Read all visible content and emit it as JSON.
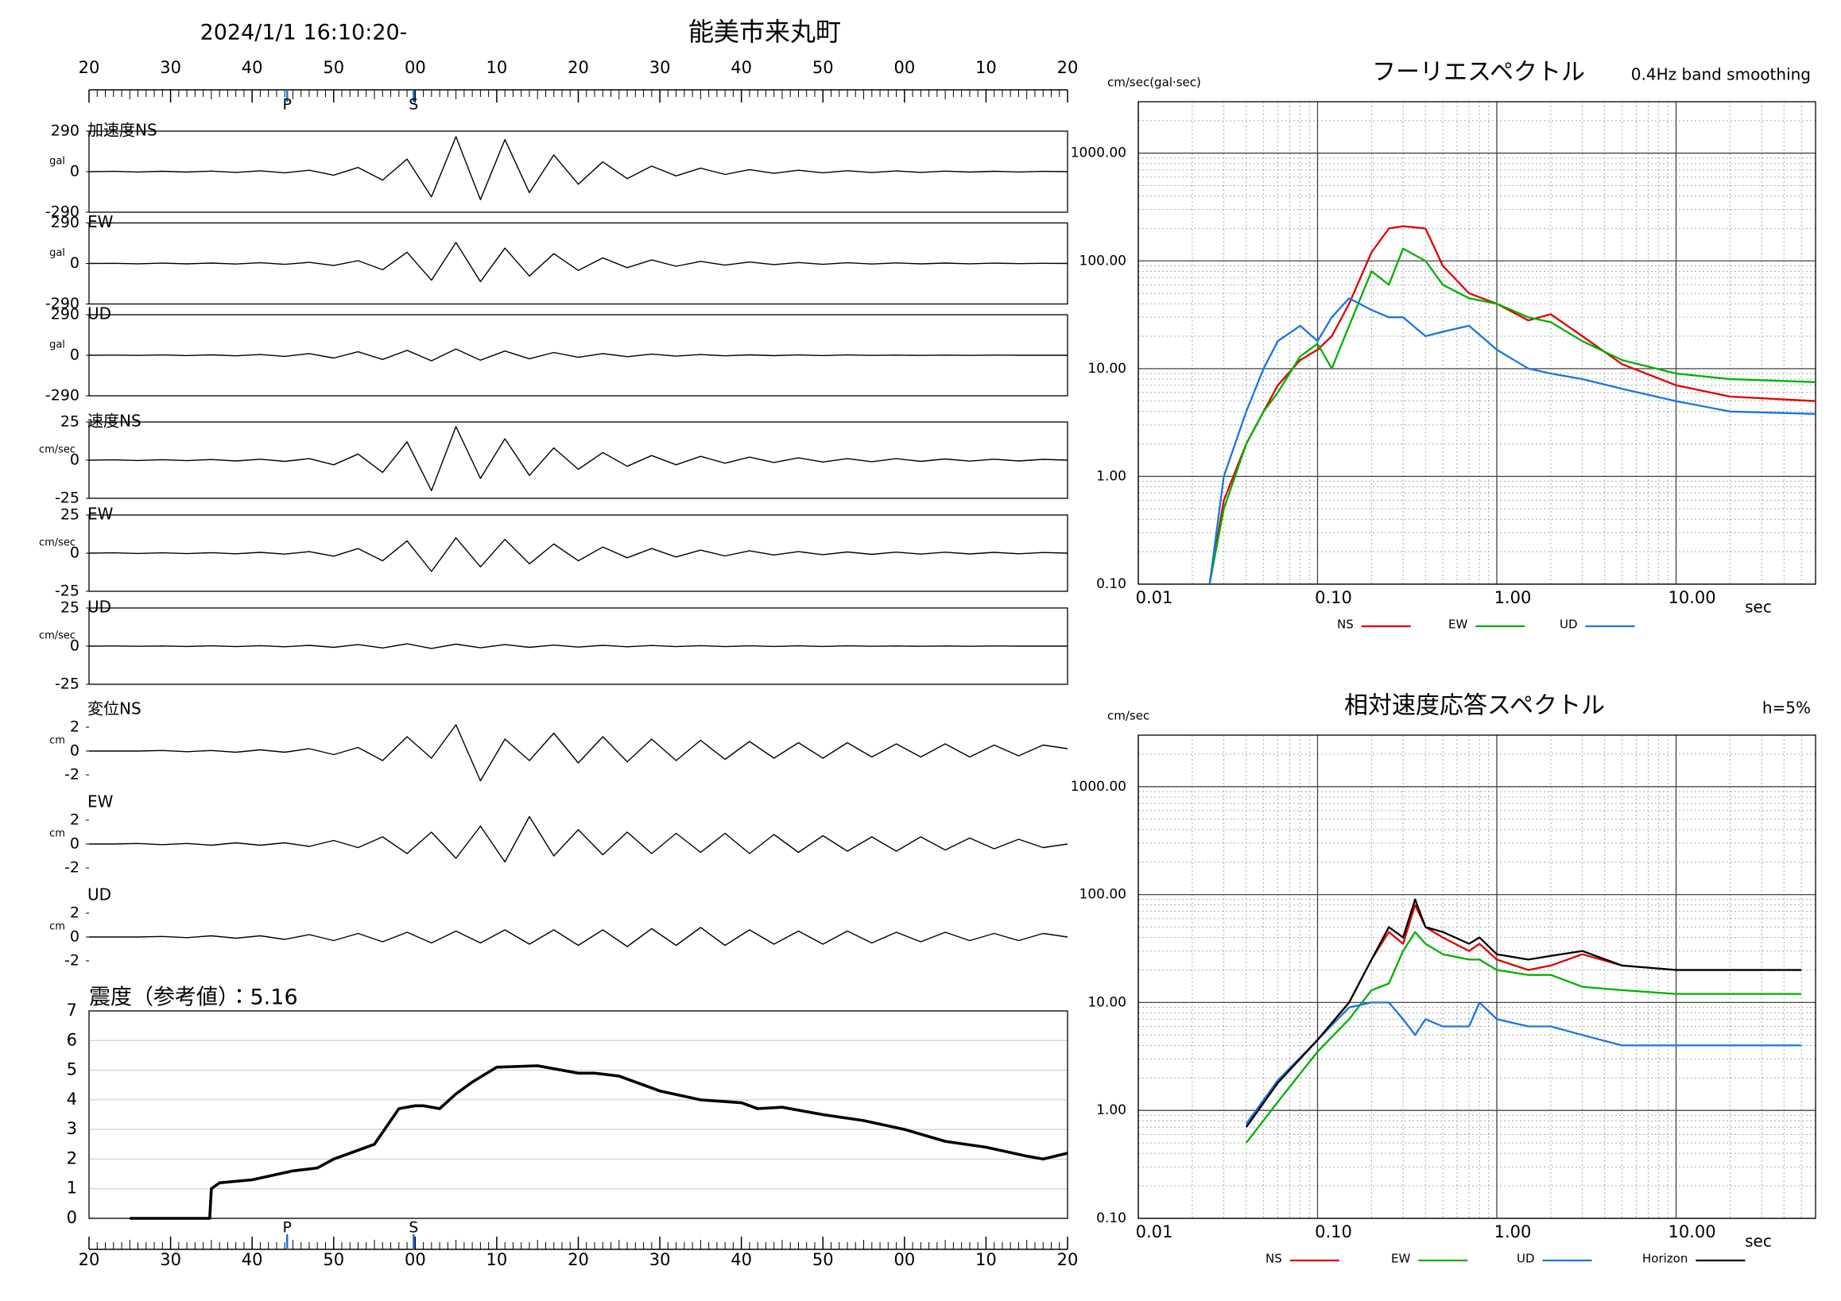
{
  "header": {
    "datetime": "2024/1/1 16:10:20-",
    "station": "能美市来丸町"
  },
  "chart_data": [
    {
      "type": "waveform",
      "x": [
        0,
        3,
        6,
        9,
        12,
        15,
        18,
        21,
        24,
        27,
        30,
        33,
        36,
        39,
        42,
        45,
        48,
        51,
        54,
        57,
        60,
        63,
        66,
        69,
        72,
        75,
        78,
        81,
        84,
        87,
        90,
        93,
        96,
        99,
        102,
        105,
        108,
        111,
        114,
        117,
        120
      ],
      "xlim": [
        0,
        120
      ],
      "xticks": [
        {
          "value": 0,
          "label": "20"
        },
        {
          "value": 10,
          "label": "30"
        },
        {
          "value": 20,
          "label": "40"
        },
        {
          "value": 30,
          "label": "50"
        },
        {
          "value": 40,
          "label": "00"
        },
        {
          "value": 50,
          "label": "10"
        },
        {
          "value": 60,
          "label": "20"
        },
        {
          "value": 70,
          "label": "30"
        },
        {
          "value": 80,
          "label": "40"
        },
        {
          "value": 90,
          "label": "50"
        },
        {
          "value": 100,
          "label": "00"
        },
        {
          "value": 110,
          "label": "10"
        },
        {
          "value": 120,
          "label": "20"
        }
      ],
      "phases": [
        {
          "label": "P",
          "x": 24.3,
          "color": "#1a75e0"
        },
        {
          "label": "S",
          "x": 39.8,
          "color": "#1a75e0"
        }
      ],
      "series": [
        {
          "name": "加速度NS",
          "unit": "gal",
          "color": "#000000",
          "ylim": [
            -290,
            290
          ],
          "yticks": [
            290,
            0,
            -290
          ],
          "values": [
            0,
            2,
            -2,
            3,
            -3,
            4,
            -5,
            6,
            -8,
            10,
            -25,
            30,
            -60,
            90,
            -180,
            250,
            -200,
            230,
            -150,
            120,
            -90,
            70,
            -50,
            40,
            -30,
            25,
            -20,
            15,
            -12,
            10,
            -8,
            7,
            -6,
            5,
            -5,
            4,
            -3,
            3,
            -2,
            2,
            0
          ]
        },
        {
          "name": "EW",
          "unit": "gal",
          "color": "#000000",
          "ylim": [
            -290,
            290
          ],
          "yticks": [
            290,
            0,
            -290
          ],
          "values": [
            0,
            1,
            -2,
            2,
            -3,
            3,
            -4,
            5,
            -6,
            8,
            -15,
            20,
            -45,
            80,
            -120,
            150,
            -130,
            110,
            -90,
            70,
            -50,
            40,
            -30,
            25,
            -20,
            15,
            -12,
            10,
            -8,
            7,
            -6,
            5,
            -4,
            4,
            -3,
            3,
            -2,
            2,
            -1,
            1,
            0
          ]
        },
        {
          "name": "UD",
          "unit": "gal",
          "color": "#000000",
          "ylim": [
            -290,
            290
          ],
          "yticks": [
            290,
            0,
            -290
          ],
          "values": [
            0,
            1,
            -1,
            2,
            -2,
            3,
            -4,
            5,
            -8,
            12,
            -20,
            25,
            -30,
            35,
            -40,
            45,
            -35,
            30,
            -25,
            20,
            -15,
            12,
            -10,
            8,
            -6,
            5,
            -4,
            3,
            -3,
            2,
            -2,
            2,
            -1,
            1,
            -1,
            1,
            -1,
            1,
            0,
            0,
            0
          ]
        },
        {
          "name": "速度NS",
          "unit": "cm/sec",
          "color": "#000000",
          "ylim": [
            -25,
            25
          ],
          "yticks": [
            25,
            0,
            -25
          ],
          "values": [
            0,
            0.2,
            -0.2,
            0.3,
            -0.3,
            0.4,
            -0.5,
            0.6,
            -0.8,
            1,
            -3,
            4,
            -8,
            12,
            -20,
            22,
            -12,
            14,
            -10,
            8,
            -6,
            5,
            -4,
            3,
            -3,
            2.5,
            -2,
            2,
            -1.5,
            1.5,
            -1.2,
            1,
            -1,
            1,
            -0.8,
            0.8,
            -0.6,
            0.6,
            -0.5,
            0.5,
            0
          ]
        },
        {
          "name": "EW",
          "unit": "cm/sec",
          "color": "#000000",
          "ylim": [
            -25,
            25
          ],
          "yticks": [
            25,
            0,
            -25
          ],
          "values": [
            0,
            0.2,
            -0.2,
            0.2,
            -0.3,
            0.3,
            -0.4,
            0.5,
            -0.6,
            1,
            -2,
            3,
            -5,
            8,
            -12,
            10,
            -9,
            9,
            -7,
            6,
            -5,
            4,
            -3,
            3,
            -2.5,
            2,
            -1.8,
            1.5,
            -1.2,
            1,
            -1,
            0.8,
            -0.8,
            0.7,
            -0.6,
            0.6,
            -0.5,
            0.5,
            -0.4,
            0.4,
            0
          ]
        },
        {
          "name": "UD",
          "unit": "cm/sec",
          "color": "#000000",
          "ylim": [
            -25,
            25
          ],
          "yticks": [
            25,
            0,
            -25
          ],
          "values": [
            0,
            0.1,
            -0.1,
            0.1,
            -0.2,
            0.2,
            -0.3,
            0.3,
            -0.4,
            0.5,
            -0.8,
            1,
            -1.2,
            1.5,
            -1.5,
            1.3,
            -1.1,
            1,
            -0.8,
            0.7,
            -0.6,
            0.5,
            -0.4,
            0.4,
            -0.3,
            0.3,
            -0.3,
            0.2,
            -0.2,
            0.2,
            -0.2,
            0.2,
            -0.1,
            0.1,
            -0.1,
            0.1,
            -0.1,
            0.1,
            0,
            0,
            0
          ]
        },
        {
          "name": "変位NS",
          "unit": "cm",
          "color": "#000000",
          "ylim": [
            -2,
            2
          ],
          "yticks": [
            2,
            0,
            -2
          ],
          "values": [
            0,
            0,
            0,
            0.05,
            -0.05,
            0.05,
            -0.1,
            0.1,
            -0.1,
            0.2,
            -0.3,
            0.3,
            -0.8,
            1.2,
            -0.6,
            2.2,
            -2.5,
            1,
            -0.8,
            1.5,
            -1,
            1.2,
            -0.9,
            1,
            -0.8,
            0.9,
            -0.7,
            0.8,
            -0.6,
            0.7,
            -0.6,
            0.7,
            -0.5,
            0.6,
            -0.5,
            0.6,
            -0.5,
            0.5,
            -0.4,
            0.5,
            0.2
          ]
        },
        {
          "name": "EW",
          "unit": "cm",
          "color": "#000000",
          "ylim": [
            -2,
            2
          ],
          "yticks": [
            2,
            0,
            -2
          ],
          "values": [
            0,
            0,
            0.05,
            -0.05,
            0.05,
            -0.1,
            0.1,
            -0.1,
            0.1,
            -0.2,
            0.3,
            -0.3,
            0.6,
            -0.8,
            1,
            -1.2,
            1.5,
            -1.5,
            2.3,
            -1,
            1.2,
            -0.9,
            1,
            -0.8,
            0.9,
            -0.7,
            0.9,
            -0.8,
            0.8,
            -0.7,
            0.7,
            -0.6,
            0.6,
            -0.6,
            0.6,
            -0.5,
            0.5,
            -0.4,
            0.4,
            -0.3,
            0
          ]
        },
        {
          "name": "UD",
          "unit": "cm",
          "color": "#000000",
          "ylim": [
            -2,
            2
          ],
          "yticks": [
            2,
            0,
            -2
          ],
          "values": [
            0,
            0,
            0,
            0.05,
            -0.05,
            0.1,
            -0.1,
            0.1,
            -0.2,
            0.2,
            -0.3,
            0.3,
            -0.4,
            0.4,
            -0.5,
            0.5,
            -0.5,
            0.6,
            -0.6,
            0.6,
            -0.7,
            0.6,
            -0.8,
            0.7,
            -0.7,
            0.8,
            -0.7,
            0.6,
            -0.6,
            0.5,
            -0.6,
            0.5,
            -0.5,
            0.4,
            -0.4,
            0.4,
            -0.3,
            0.3,
            -0.3,
            0.3,
            0
          ]
        }
      ]
    },
    {
      "type": "intensity",
      "title": "震度（参考値）：5.16",
      "color": "#000000",
      "x": [
        5,
        14.8,
        15,
        16,
        20,
        25,
        28,
        30,
        32,
        35,
        38,
        40,
        41,
        43,
        45,
        47,
        50,
        55,
        60,
        62,
        65,
        70,
        75,
        80,
        82,
        85,
        90,
        95,
        100,
        105,
        110,
        115,
        117,
        120
      ],
      "values": [
        0,
        0,
        1.0,
        1.2,
        1.3,
        1.6,
        1.7,
        2.0,
        2.2,
        2.5,
        3.7,
        3.8,
        3.8,
        3.7,
        4.2,
        4.6,
        5.1,
        5.15,
        4.9,
        4.9,
        4.8,
        4.3,
        4.0,
        3.9,
        3.7,
        3.75,
        3.5,
        3.3,
        3.0,
        2.6,
        2.4,
        2.1,
        2.0,
        2.2
      ],
      "xlim": [
        0,
        120
      ],
      "ylim": [
        0,
        7
      ],
      "yticks": [
        0,
        1,
        2,
        3,
        4,
        5,
        6,
        7
      ],
      "grid": true
    },
    {
      "type": "spectrum",
      "title": "フーリエスペクトル",
      "subtitle": "0.4Hz band smoothing",
      "ylabel": "cm/sec(gal·sec)",
      "xlabel": "sec",
      "log": true,
      "grid": true,
      "xlim": [
        0.01,
        60
      ],
      "xticks": [
        {
          "value": 0.01,
          "label": "0.01"
        },
        {
          "value": 0.1,
          "label": "0.10"
        },
        {
          "value": 1,
          "label": "1.00"
        },
        {
          "value": 10,
          "label": "10.00"
        }
      ],
      "ylim": [
        0.1,
        3000
      ],
      "yticks": [
        {
          "value": 1000,
          "label": "1000.00"
        },
        {
          "value": 100,
          "label": "100.00"
        },
        {
          "value": 10,
          "label": "10.00"
        },
        {
          "value": 1,
          "label": "1.00"
        },
        {
          "value": 0.1,
          "label": "0.10"
        }
      ],
      "x": [
        0.025,
        0.03,
        0.04,
        0.05,
        0.06,
        0.08,
        0.1,
        0.12,
        0.15,
        0.2,
        0.25,
        0.3,
        0.4,
        0.5,
        0.7,
        1,
        1.5,
        2,
        3,
        5,
        10,
        20,
        60
      ],
      "series": [
        {
          "name": "NS",
          "color": "#e00000",
          "values": [
            0.1,
            0.6,
            2,
            4,
            7,
            12,
            15,
            20,
            40,
            120,
            200,
            210,
            200,
            90,
            50,
            40,
            28,
            32,
            20,
            11,
            7,
            5.5,
            5
          ]
        },
        {
          "name": "EW",
          "color": "#00b000",
          "values": [
            0.1,
            0.5,
            2,
            4,
            6,
            13,
            17,
            10,
            25,
            80,
            60,
            130,
            100,
            60,
            45,
            40,
            30,
            27,
            18,
            12,
            9,
            8,
            7.5
          ]
        },
        {
          "name": "UD",
          "color": "#1a75e0",
          "values": [
            0.1,
            1,
            4,
            10,
            18,
            25,
            18,
            30,
            45,
            35,
            30,
            30,
            20,
            22,
            25,
            15,
            10,
            9,
            8,
            6.5,
            5,
            4,
            3.8
          ]
        }
      ]
    },
    {
      "type": "spectrum",
      "title": "相対速度応答スペクトル",
      "subtitle": "h=5%",
      "ylabel": "cm/sec",
      "xlabel": "sec",
      "log": true,
      "grid": true,
      "xlim": [
        0.01,
        60
      ],
      "xticks": [
        {
          "value": 0.01,
          "label": "0.01"
        },
        {
          "value": 0.1,
          "label": "0.10"
        },
        {
          "value": 1,
          "label": "1.00"
        },
        {
          "value": 10,
          "label": "10.00"
        }
      ],
      "ylim": [
        0.1,
        3000
      ],
      "yticks": [
        {
          "value": 1000,
          "label": "1000.00"
        },
        {
          "value": 100,
          "label": "100.00"
        },
        {
          "value": 10,
          "label": "10.00"
        },
        {
          "value": 1,
          "label": "1.00"
        },
        {
          "value": 0.1,
          "label": "0.10"
        }
      ],
      "x": [
        0.04,
        0.06,
        0.1,
        0.15,
        0.2,
        0.25,
        0.3,
        0.35,
        0.4,
        0.5,
        0.7,
        0.8,
        1,
        1.5,
        2,
        3,
        5,
        10,
        20,
        50
      ],
      "series": [
        {
          "name": "NS",
          "color": "#e00000",
          "values": [
            0.7,
            1.8,
            4.5,
            10,
            25,
            45,
            35,
            80,
            50,
            40,
            30,
            35,
            25,
            20,
            22,
            28,
            22,
            20,
            20,
            20
          ]
        },
        {
          "name": "EW",
          "color": "#00b000",
          "values": [
            0.5,
            1.2,
            3.5,
            7,
            13,
            15,
            30,
            45,
            35,
            28,
            25,
            25,
            20,
            18,
            18,
            14,
            13,
            12,
            12,
            12
          ]
        },
        {
          "name": "UD",
          "color": "#1a75e0",
          "values": [
            0.75,
            1.9,
            4.5,
            9,
            10,
            10,
            7,
            5,
            7,
            6,
            6,
            10,
            7,
            6,
            6,
            5,
            4,
            4,
            4,
            4
          ]
        },
        {
          "name": "Horizon",
          "color": "#000000",
          "values": [
            0.7,
            1.8,
            4.5,
            10,
            25,
            50,
            40,
            90,
            50,
            45,
            35,
            40,
            28,
            25,
            27,
            30,
            22,
            20,
            20,
            20
          ]
        }
      ]
    }
  ]
}
